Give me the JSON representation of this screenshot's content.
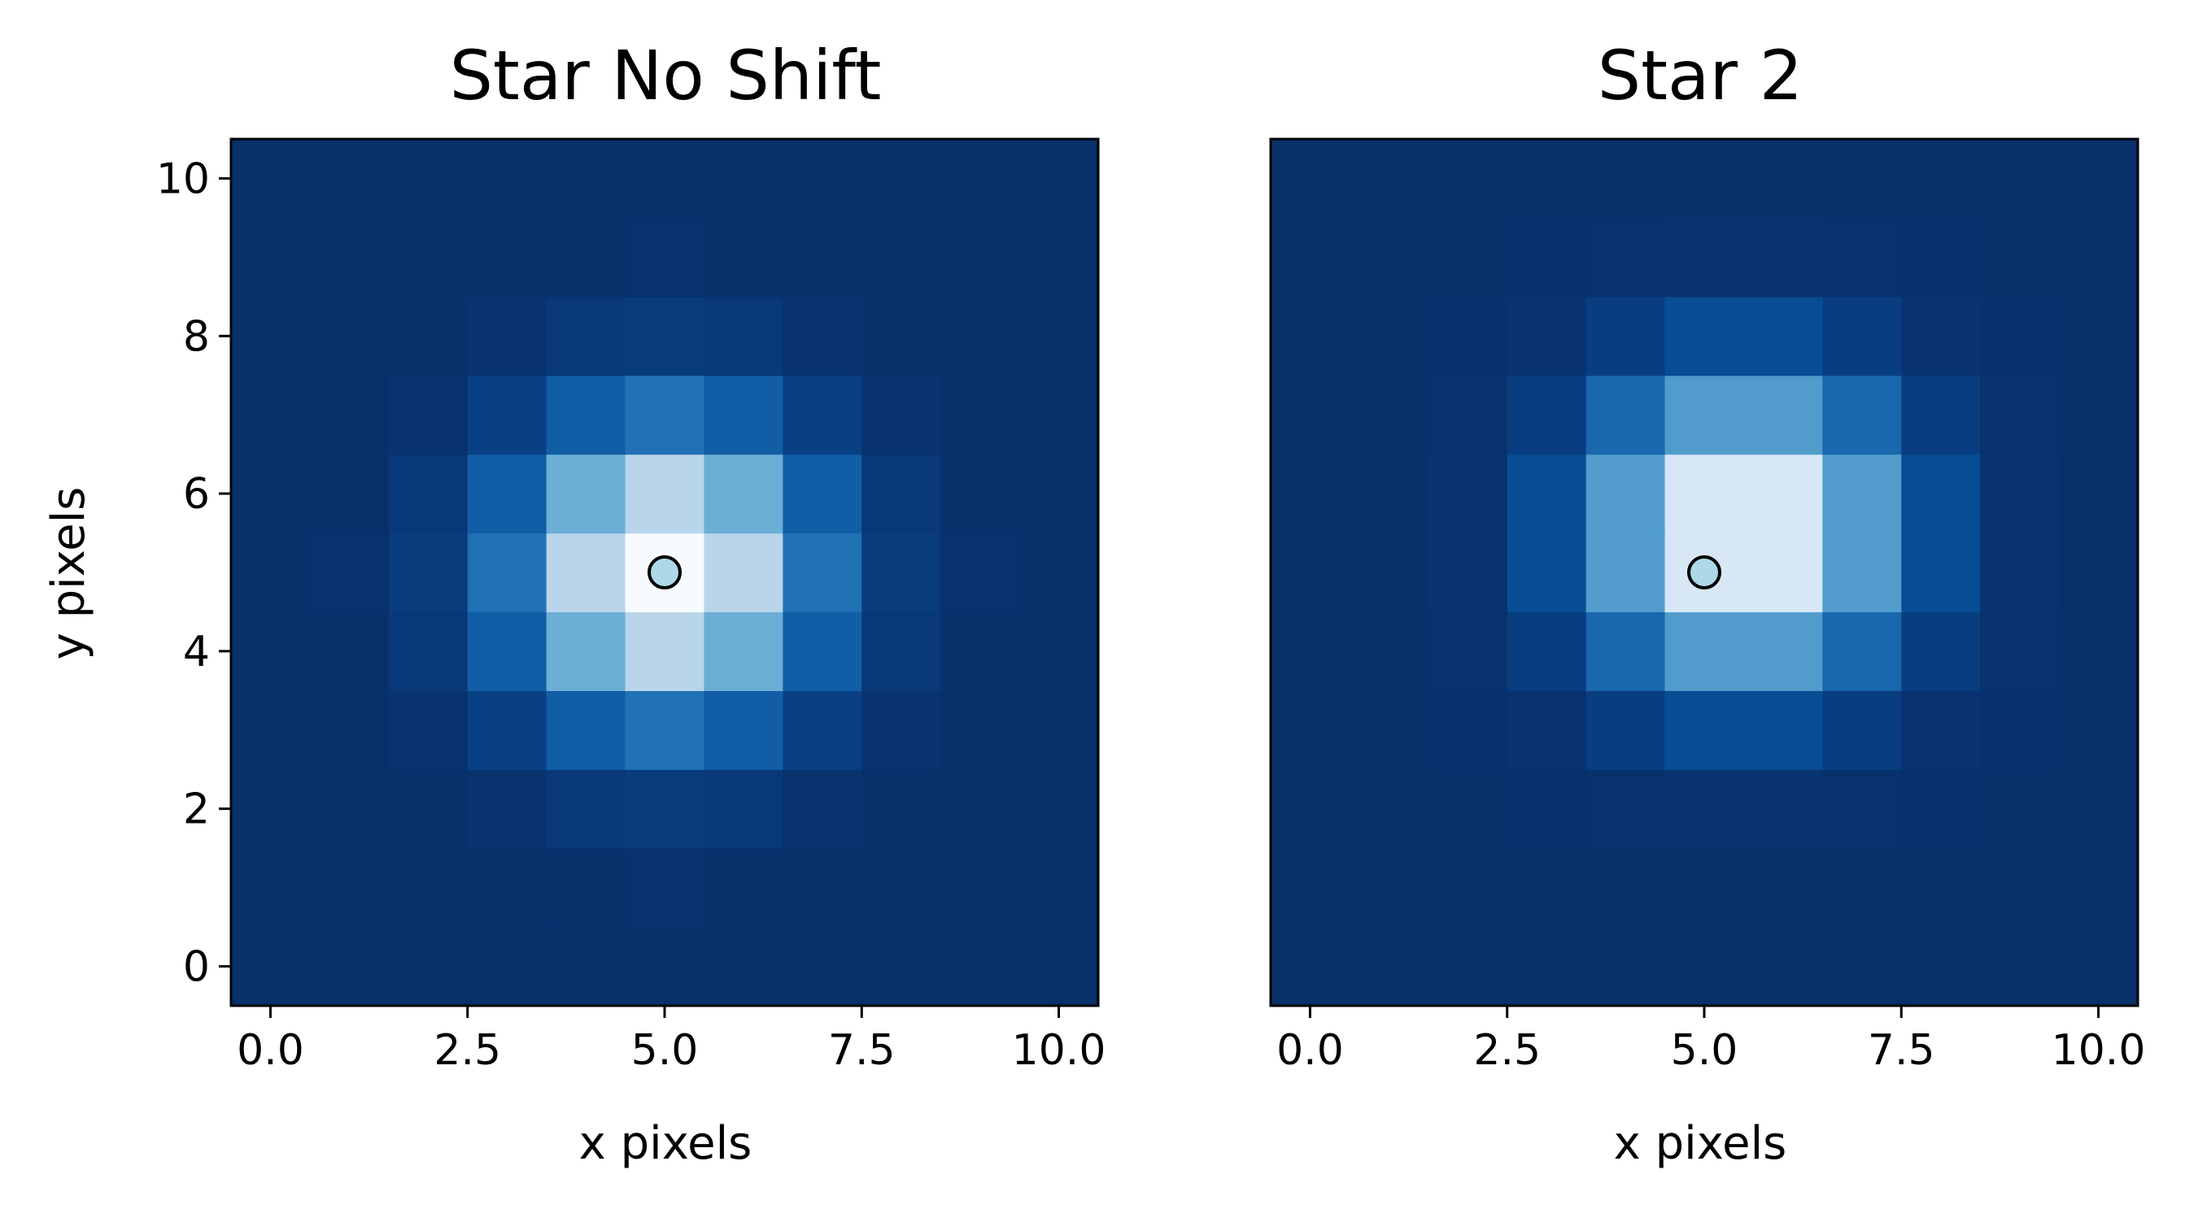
{
  "chart_data": [
    {
      "type": "heatmap",
      "title": "Star No Shift",
      "xlabel": "x pixels",
      "ylabel": "y pixels",
      "xlim": [
        -0.5,
        10.5
      ],
      "ylim": [
        -0.5,
        10.5
      ],
      "x_ticks": [
        0.0,
        2.5,
        5.0,
        7.5,
        10.0
      ],
      "x_tick_labels": [
        "0.0",
        "2.5",
        "5.0",
        "7.5",
        "10.0"
      ],
      "y_ticks": [
        0,
        2,
        4,
        6,
        8,
        10
      ],
      "y_tick_labels": [
        "0",
        "2",
        "4",
        "6",
        "8",
        "10"
      ],
      "colormap": "Blues_r",
      "star_center": {
        "x": 5.0,
        "y": 5.0
      },
      "psf_model": {
        "x0": 5.0,
        "y0": 5.0,
        "sigma": 1.2
      },
      "marker": {
        "x": 5.0,
        "y": 5.0,
        "color": "#add8e6",
        "edge": "#000000"
      }
    },
    {
      "type": "heatmap",
      "title": "Star 2",
      "xlabel": "x pixels",
      "ylabel": "",
      "xlim": [
        -0.5,
        10.5
      ],
      "ylim": [
        -0.5,
        10.5
      ],
      "x_ticks": [
        0.0,
        2.5,
        5.0,
        7.5,
        10.0
      ],
      "x_tick_labels": [
        "0.0",
        "2.5",
        "5.0",
        "7.5",
        "10.0"
      ],
      "y_ticks": [],
      "y_tick_labels": [],
      "colormap": "Blues_r",
      "star_center": {
        "x": 5.5,
        "y": 5.5
      },
      "psf_model": {
        "x0": 5.5,
        "y0": 5.5,
        "sigma": 1.2
      },
      "marker": {
        "x": 5.0,
        "y": 5.0,
        "color": "#add8e6",
        "edge": "#000000"
      }
    }
  ]
}
